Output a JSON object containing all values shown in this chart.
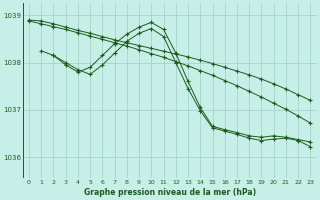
{
  "bg_color": "#c8eee8",
  "grid_color": "#9dcfc8",
  "line_color": "#1a5c1a",
  "xlabel": "Graphe pression niveau de la mer (hPa)",
  "ylim": [
    1035.55,
    1039.25
  ],
  "xlim": [
    -0.5,
    23.5
  ],
  "yticks": [
    1036,
    1037,
    1038,
    1039
  ],
  "xticks": [
    0,
    1,
    2,
    3,
    4,
    5,
    6,
    7,
    8,
    9,
    10,
    11,
    12,
    13,
    14,
    15,
    16,
    17,
    18,
    19,
    20,
    21,
    22,
    23
  ],
  "series": [
    {
      "x": [
        0,
        1,
        2,
        3,
        4,
        5,
        6,
        7,
        8,
        9,
        10,
        11,
        12,
        13,
        14,
        15,
        16,
        17,
        18,
        19,
        20,
        21,
        22,
        23
      ],
      "y": [
        1038.9,
        1038.88,
        1038.82,
        1038.75,
        1038.68,
        1038.62,
        1038.55,
        1038.48,
        1038.42,
        1038.36,
        1038.3,
        1038.24,
        1038.18,
        1038.12,
        1038.05,
        1037.98,
        1037.9,
        1037.82,
        1037.74,
        1037.65,
        1037.55,
        1037.44,
        1037.32,
        1037.2
      ]
    },
    {
      "x": [
        0,
        1,
        2,
        3,
        4,
        5,
        6,
        7,
        8,
        9,
        10,
        11,
        12,
        13,
        14,
        15,
        16,
        17,
        18,
        19,
        20,
        21,
        22,
        23
      ],
      "y": [
        1038.88,
        1038.82,
        1038.76,
        1038.7,
        1038.63,
        1038.56,
        1038.49,
        1038.42,
        1038.35,
        1038.27,
        1038.19,
        1038.11,
        1038.02,
        1037.93,
        1037.83,
        1037.73,
        1037.62,
        1037.51,
        1037.39,
        1037.27,
        1037.14,
        1037.01,
        1036.87,
        1036.72
      ]
    },
    {
      "x": [
        1,
        2,
        3,
        4,
        5,
        6,
        7,
        8,
        9,
        10,
        11,
        12,
        13,
        14,
        15,
        16,
        17,
        18,
        19,
        20,
        21,
        22,
        23
      ],
      "y": [
        1038.25,
        1038.15,
        1037.95,
        1037.8,
        1037.9,
        1038.15,
        1038.4,
        1038.6,
        1038.75,
        1038.85,
        1038.7,
        1038.2,
        1037.6,
        1037.05,
        1036.65,
        1036.58,
        1036.52,
        1036.45,
        1036.42,
        1036.45,
        1036.42,
        1036.37,
        1036.32
      ]
    },
    {
      "x": [
        2,
        3,
        4,
        5,
        6,
        7,
        8,
        9,
        10,
        11,
        12,
        13,
        14,
        15,
        16,
        17,
        18,
        19,
        20,
        21,
        22,
        23
      ],
      "y": [
        1038.15,
        1038.0,
        1037.85,
        1037.75,
        1037.95,
        1038.2,
        1038.45,
        1038.62,
        1038.72,
        1038.55,
        1038.0,
        1037.45,
        1036.98,
        1036.62,
        1036.55,
        1036.48,
        1036.4,
        1036.35,
        1036.38,
        1036.4,
        1036.35,
        1036.22
      ]
    }
  ]
}
